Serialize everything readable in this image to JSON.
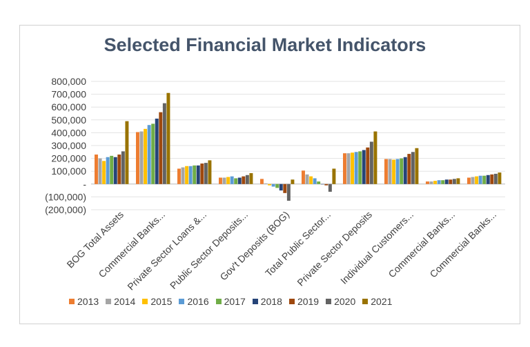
{
  "chart_data": {
    "type": "bar",
    "title": "Selected Financial Market Indicators",
    "categories": [
      "BOG Total Assets",
      "Commercial Banks...",
      "Private Sector Loans &...",
      "Public Sector Deposits...",
      "Gov't Deposits (BOG)",
      "Total Public Sector...",
      "Private Sector Deposits",
      "Individual Customers...",
      "Commercial Banks...",
      "Commercial Banks..."
    ],
    "series": [
      {
        "name": "2013",
        "color": "#ed7d31",
        "values": [
          230000,
          405000,
          120000,
          50000,
          40000,
          105000,
          240000,
          195000,
          20000,
          50000
        ]
      },
      {
        "name": "2014",
        "color": "#a5a5a5",
        "values": [
          200000,
          410000,
          130000,
          50000,
          5000,
          75000,
          240000,
          195000,
          20000,
          55000
        ]
      },
      {
        "name": "2015",
        "color": "#ffc000",
        "values": [
          180000,
          430000,
          140000,
          55000,
          -10000,
          60000,
          245000,
          190000,
          25000,
          60000
        ]
      },
      {
        "name": "2016",
        "color": "#5b9bd5",
        "values": [
          210000,
          460000,
          140000,
          60000,
          -20000,
          45000,
          250000,
          195000,
          30000,
          65000
        ]
      },
      {
        "name": "2017",
        "color": "#70ad47",
        "values": [
          220000,
          470000,
          145000,
          45000,
          -30000,
          20000,
          255000,
          200000,
          30000,
          65000
        ]
      },
      {
        "name": "2018",
        "color": "#264478",
        "values": [
          210000,
          510000,
          145000,
          50000,
          -50000,
          0,
          265000,
          210000,
          35000,
          70000
        ]
      },
      {
        "name": "2019",
        "color": "#9e480e",
        "values": [
          230000,
          560000,
          160000,
          60000,
          -70000,
          -10000,
          285000,
          235000,
          35000,
          75000
        ]
      },
      {
        "name": "2020",
        "color": "#636363",
        "values": [
          255000,
          630000,
          165000,
          70000,
          -130000,
          -60000,
          330000,
          250000,
          40000,
          80000
        ]
      },
      {
        "name": "2021",
        "color": "#997300",
        "values": [
          490000,
          710000,
          185000,
          85000,
          35000,
          120000,
          410000,
          280000,
          45000,
          90000
        ]
      }
    ],
    "y_ticks": [
      "800,000",
      "700,000",
      "600,000",
      "500,000",
      "400,000",
      "300,000",
      "200,000",
      "100,000",
      "-",
      "(100,000)",
      "(200,000)"
    ],
    "y_tick_values": [
      800000,
      700000,
      600000,
      500000,
      400000,
      300000,
      200000,
      100000,
      0,
      -100000,
      -200000
    ],
    "ylim": [
      -200000,
      800000
    ],
    "grid": true,
    "legend_position": "bottom"
  }
}
